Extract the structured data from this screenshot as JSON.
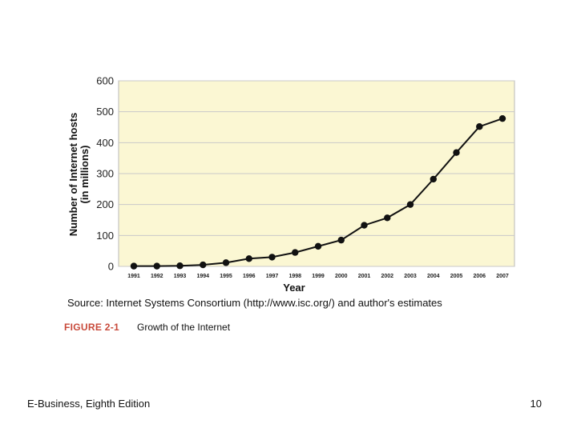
{
  "chart_data": {
    "type": "line",
    "ylabel_line1": "Number of Internet hosts",
    "ylabel_line2": "(in millions)",
    "xlabel": "Year",
    "x": [
      "1991",
      "1992",
      "1993",
      "1994",
      "1995",
      "1996",
      "1997",
      "1998",
      "1999",
      "2000",
      "2001",
      "2002",
      "2003",
      "2004",
      "2005",
      "2006",
      "2007"
    ],
    "values": [
      1,
      1,
      2,
      5,
      12,
      25,
      30,
      45,
      65,
      85,
      133,
      157,
      200,
      282,
      368,
      452,
      478
    ],
    "ylim": [
      0,
      600
    ],
    "yticks": [
      0,
      100,
      200,
      300,
      400,
      500,
      600
    ],
    "grid": true,
    "plot_background": "#fbf7d3",
    "line_color": "#111111"
  },
  "source_text": "Source: Internet Systems Consortium (http://www.isc.org/) and author's estimates",
  "figure_label": "FIGURE 2-1",
  "figure_caption": "Growth of the Internet",
  "footer": {
    "left": "E-Business, Eighth Edition",
    "right": "10"
  }
}
